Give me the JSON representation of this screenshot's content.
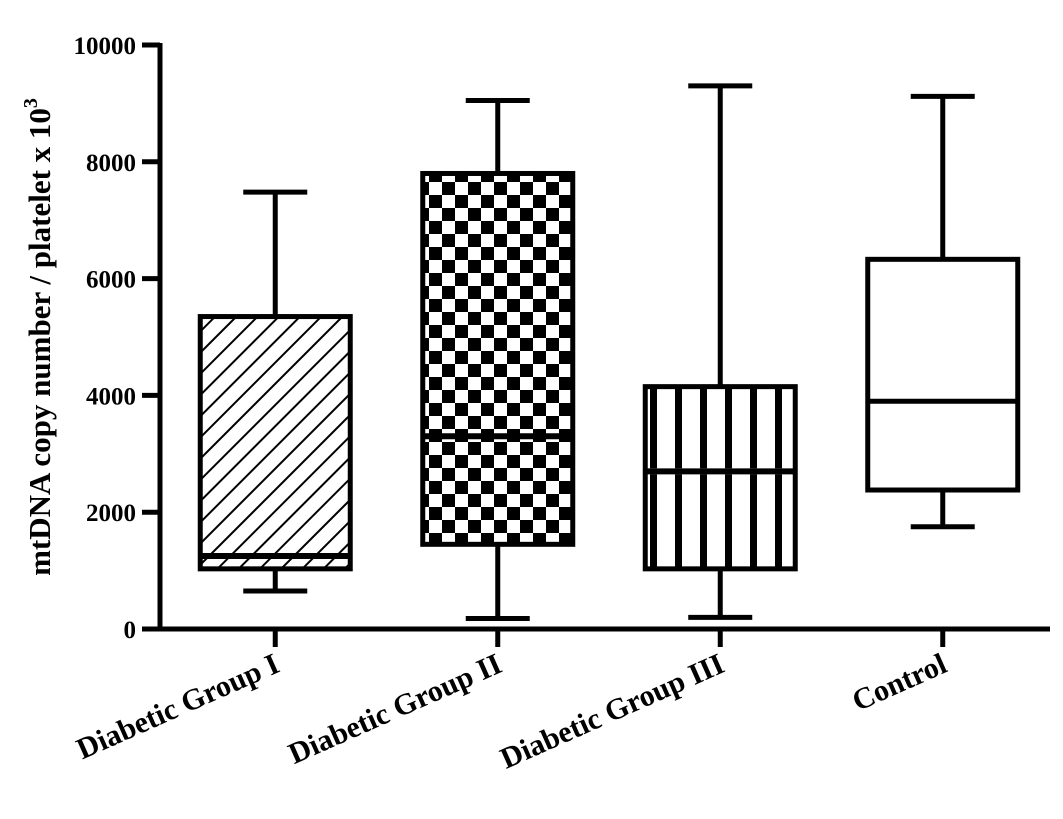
{
  "chart_data": {
    "type": "box",
    "title": "",
    "ylabel": "mtDNA copy number / platelet x 10",
    "ylabel_superscript": "3",
    "xlabel": "",
    "ylim": [
      0,
      10000
    ],
    "yticks": [
      0,
      2000,
      4000,
      6000,
      8000,
      10000
    ],
    "ytick_labels": [
      "0",
      "2000",
      "4000",
      "6000",
      "8000",
      "10000"
    ],
    "grid": false,
    "categories": [
      "Diabetic Group I",
      "Diabetic Group II",
      "Diabetic Group III",
      "Control"
    ],
    "series": [
      {
        "category": "Diabetic Group I",
        "min": 650,
        "q1": 1030,
        "median": 1250,
        "q3": 5350,
        "max": 7480,
        "fill_pattern": "diagonal-lines"
      },
      {
        "category": "Diabetic Group II",
        "min": 180,
        "q1": 1450,
        "median": 3300,
        "q3": 7800,
        "max": 9050,
        "fill_pattern": "checkerboard"
      },
      {
        "category": "Diabetic Group III",
        "min": 200,
        "q1": 1030,
        "median": 2700,
        "q3": 4150,
        "max": 9300,
        "fill_pattern": "vertical-lines"
      },
      {
        "category": "Control",
        "min": 1750,
        "q1": 2380,
        "median": 3900,
        "q3": 6330,
        "max": 9120,
        "fill_pattern": "none"
      }
    ],
    "colors": {
      "stroke": "#000000",
      "background": "#ffffff"
    }
  }
}
